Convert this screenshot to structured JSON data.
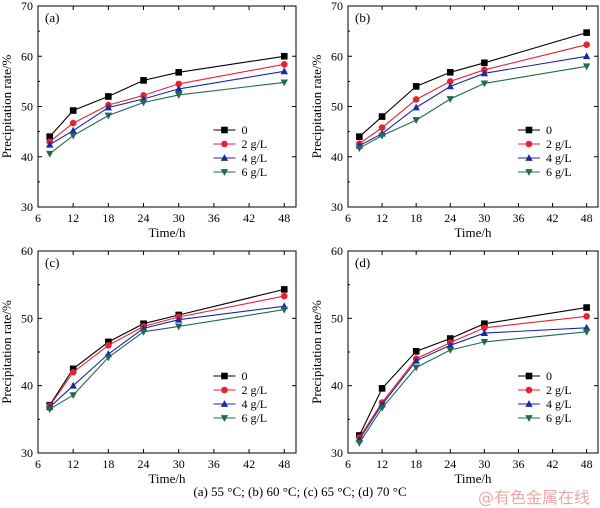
{
  "caption": "(a)  55 °C; (b) 60 °C; (c) 65 °C; (d) 70 °C",
  "watermark": "@有色金属在线",
  "series_styles": [
    {
      "color": "#000000",
      "marker": "square"
    },
    {
      "color": "#e8222e",
      "marker": "circle"
    },
    {
      "color": "#1a2aa8",
      "marker": "triangle-up"
    },
    {
      "color": "#1f6b4e",
      "marker": "triangle-down"
    }
  ],
  "chart_data": [
    {
      "type": "line",
      "panel_label": "(a)",
      "xlabel": "Time/h",
      "ylabel": "Precipitation rate/%",
      "xlim": [
        6,
        50
      ],
      "ylim": [
        30,
        70
      ],
      "xticks": [
        6,
        12,
        18,
        24,
        30,
        36,
        42,
        48
      ],
      "yticks": [
        30,
        40,
        50,
        60,
        70
      ],
      "legend_position": "lower-right",
      "x": [
        8,
        12,
        18,
        24,
        30,
        48
      ],
      "series": [
        {
          "name": "0",
          "values": [
            44.0,
            49.2,
            52.0,
            55.2,
            56.8,
            60.0
          ]
        },
        {
          "name": "2 g/L",
          "values": [
            43.0,
            46.7,
            50.3,
            52.2,
            54.5,
            58.4
          ]
        },
        {
          "name": "4 g/L",
          "values": [
            42.4,
            45.2,
            49.8,
            51.5,
            53.5,
            57.0
          ]
        },
        {
          "name": "6 g/L",
          "values": [
            40.6,
            44.2,
            48.2,
            50.8,
            52.3,
            54.8
          ]
        }
      ]
    },
    {
      "type": "line",
      "panel_label": "(b)",
      "xlabel": "Time/h",
      "ylabel": "Precipitation rate/%",
      "xlim": [
        6,
        50
      ],
      "ylim": [
        30,
        70
      ],
      "xticks": [
        6,
        12,
        18,
        24,
        30,
        36,
        42,
        48
      ],
      "yticks": [
        30,
        40,
        50,
        60,
        70
      ],
      "legend_position": "lower-right",
      "x": [
        8,
        12,
        18,
        24,
        30,
        48
      ],
      "series": [
        {
          "name": "0",
          "values": [
            44.0,
            48.0,
            54.0,
            56.8,
            58.7,
            64.7
          ]
        },
        {
          "name": "2 g/L",
          "values": [
            42.6,
            45.8,
            51.4,
            55.0,
            57.3,
            62.3
          ]
        },
        {
          "name": "4 g/L",
          "values": [
            42.2,
            44.6,
            49.8,
            54.0,
            56.6,
            60.0
          ]
        },
        {
          "name": "6 g/L",
          "values": [
            41.7,
            44.2,
            47.3,
            51.5,
            54.6,
            58.0
          ]
        }
      ]
    },
    {
      "type": "line",
      "panel_label": "(c)",
      "xlabel": "Time/h",
      "ylabel": "Precipitation rate/%",
      "xlim": [
        6,
        50
      ],
      "ylim": [
        30,
        60
      ],
      "xticks": [
        6,
        12,
        18,
        24,
        30,
        36,
        42,
        48
      ],
      "yticks": [
        30,
        40,
        50,
        60
      ],
      "legend_position": "lower-right",
      "x": [
        8,
        12,
        18,
        24,
        30,
        48
      ],
      "series": [
        {
          "name": "0",
          "values": [
            37.1,
            42.5,
            46.5,
            49.2,
            50.5,
            54.3
          ]
        },
        {
          "name": "2 g/L",
          "values": [
            37.0,
            42.0,
            46.0,
            48.8,
            50.2,
            53.3
          ]
        },
        {
          "name": "4 g/L",
          "values": [
            36.8,
            40.0,
            44.7,
            48.5,
            49.8,
            51.8
          ]
        },
        {
          "name": "6 g/L",
          "values": [
            36.5,
            38.6,
            44.2,
            48.0,
            48.8,
            51.3
          ]
        }
      ]
    },
    {
      "type": "line",
      "panel_label": "(d)",
      "xlabel": "Time/h",
      "ylabel": "Precipitation rate/%",
      "xlim": [
        6,
        50
      ],
      "ylim": [
        30,
        60
      ],
      "xticks": [
        6,
        12,
        18,
        24,
        30,
        36,
        42,
        48
      ],
      "yticks": [
        30,
        40,
        50,
        60
      ],
      "legend_position": "lower-right",
      "x": [
        8,
        12,
        18,
        24,
        30,
        48
      ],
      "series": [
        {
          "name": "0",
          "values": [
            32.6,
            39.6,
            45.1,
            47.0,
            49.2,
            51.6
          ]
        },
        {
          "name": "2 g/L",
          "values": [
            32.3,
            37.5,
            44.0,
            46.4,
            48.6,
            50.3
          ]
        },
        {
          "name": "4 g/L",
          "values": [
            32.0,
            37.2,
            43.7,
            46.0,
            47.8,
            48.6
          ]
        },
        {
          "name": "6 g/L",
          "values": [
            31.5,
            36.7,
            42.7,
            45.3,
            46.5,
            48.0
          ]
        }
      ]
    }
  ]
}
